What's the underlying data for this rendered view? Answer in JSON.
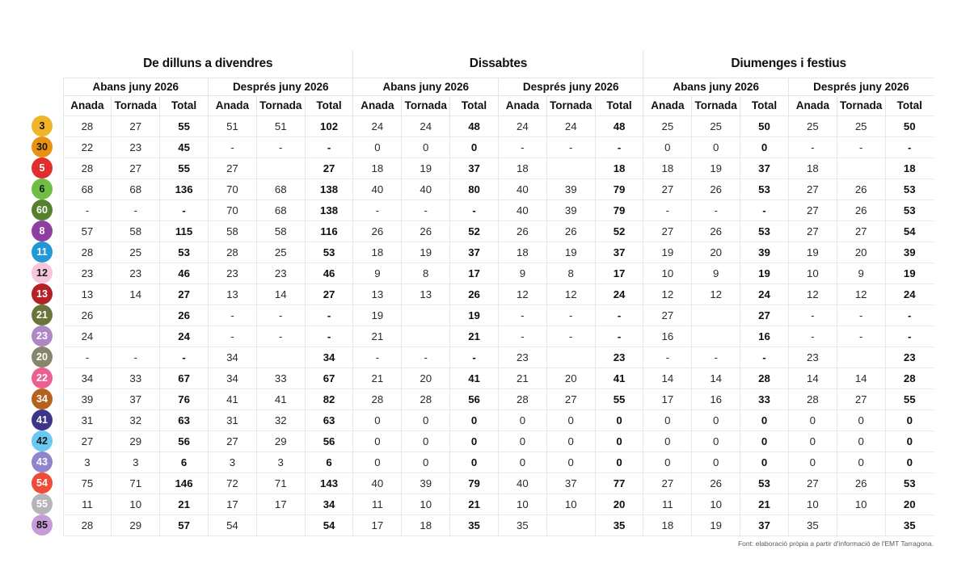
{
  "chart_data": {
    "type": "table",
    "groups": [
      "De dilluns a divendres",
      "Dissabtes",
      "Diumenges i festius"
    ],
    "periods": [
      "Abans juny 2026",
      "Després juny 2026"
    ],
    "columns": [
      "Anada",
      "Tornada",
      "Total"
    ],
    "rows": [
      {
        "line": "3",
        "badge_color": "#F0B429",
        "badge_text": "#161616",
        "weekday_before": [
          "28",
          "27",
          "55"
        ],
        "weekday_after": [
          "51",
          "51",
          "102"
        ],
        "saturday_before": [
          "24",
          "24",
          "48"
        ],
        "saturday_after": [
          "24",
          "24",
          "48"
        ],
        "sunday_before": [
          "25",
          "25",
          "50"
        ],
        "sunday_after": [
          "25",
          "25",
          "50"
        ]
      },
      {
        "line": "30",
        "badge_color": "#E9920F",
        "badge_text": "#161616",
        "weekday_before": [
          "22",
          "23",
          "45"
        ],
        "weekday_after": [
          "-",
          "-",
          "-"
        ],
        "saturday_before": [
          "0",
          "0",
          "0"
        ],
        "saturday_after": [
          "-",
          "-",
          "-"
        ],
        "sunday_before": [
          "0",
          "0",
          "0"
        ],
        "sunday_after": [
          "-",
          "-",
          "-"
        ]
      },
      {
        "line": "5",
        "badge_color": "#E12D2D",
        "badge_text": "#ffffff",
        "weekday_before": [
          "28",
          "27",
          "55"
        ],
        "weekday_after": [
          "27",
          "",
          "27"
        ],
        "saturday_before": [
          "18",
          "19",
          "37"
        ],
        "saturday_after": [
          "18",
          "",
          "18"
        ],
        "sunday_before": [
          "18",
          "19",
          "37"
        ],
        "sunday_after": [
          "18",
          "",
          "18"
        ]
      },
      {
        "line": "6",
        "badge_color": "#6EBE45",
        "badge_text": "#161616",
        "weekday_before": [
          "68",
          "68",
          "136"
        ],
        "weekday_after": [
          "70",
          "68",
          "138"
        ],
        "saturday_before": [
          "40",
          "40",
          "80"
        ],
        "saturday_after": [
          "40",
          "39",
          "79"
        ],
        "sunday_before": [
          "27",
          "26",
          "53"
        ],
        "sunday_after": [
          "27",
          "26",
          "53"
        ]
      },
      {
        "line": "60",
        "badge_color": "#55812E",
        "badge_text": "#ffffff",
        "weekday_before": [
          "-",
          "-",
          "-"
        ],
        "weekday_after": [
          "70",
          "68",
          "138"
        ],
        "saturday_before": [
          "-",
          "-",
          "-"
        ],
        "saturday_after": [
          "40",
          "39",
          "79"
        ],
        "sunday_before": [
          "-",
          "-",
          "-"
        ],
        "sunday_after": [
          "27",
          "26",
          "53"
        ]
      },
      {
        "line": "8",
        "badge_color": "#8F3FA0",
        "badge_text": "#ffffff",
        "weekday_before": [
          "57",
          "58",
          "115"
        ],
        "weekday_after": [
          "58",
          "58",
          "116"
        ],
        "saturday_before": [
          "26",
          "26",
          "52"
        ],
        "saturday_after": [
          "26",
          "26",
          "52"
        ],
        "sunday_before": [
          "27",
          "26",
          "53"
        ],
        "sunday_after": [
          "27",
          "27",
          "54"
        ]
      },
      {
        "line": "11",
        "badge_color": "#2099D6",
        "badge_text": "#ffffff",
        "weekday_before": [
          "28",
          "25",
          "53"
        ],
        "weekday_after": [
          "28",
          "25",
          "53"
        ],
        "saturday_before": [
          "18",
          "19",
          "37"
        ],
        "saturday_after": [
          "18",
          "19",
          "37"
        ],
        "sunday_before": [
          "19",
          "20",
          "39"
        ],
        "sunday_after": [
          "19",
          "20",
          "39"
        ]
      },
      {
        "line": "12",
        "badge_color": "#F6C6DD",
        "badge_text": "#161616",
        "weekday_before": [
          "23",
          "23",
          "46"
        ],
        "weekday_after": [
          "23",
          "23",
          "46"
        ],
        "saturday_before": [
          "9",
          "8",
          "17"
        ],
        "saturday_after": [
          "9",
          "8",
          "17"
        ],
        "sunday_before": [
          "10",
          "9",
          "19"
        ],
        "sunday_after": [
          "10",
          "9",
          "19"
        ]
      },
      {
        "line": "13",
        "badge_color": "#B32025",
        "badge_text": "#ffffff",
        "weekday_before": [
          "13",
          "14",
          "27"
        ],
        "weekday_after": [
          "13",
          "14",
          "27"
        ],
        "saturday_before": [
          "13",
          "13",
          "26"
        ],
        "saturday_after": [
          "12",
          "12",
          "24"
        ],
        "sunday_before": [
          "12",
          "12",
          "24"
        ],
        "sunday_after": [
          "12",
          "12",
          "24"
        ]
      },
      {
        "line": "21",
        "badge_color": "#6A753C",
        "badge_text": "#ffffff",
        "weekday_before": [
          "26",
          "",
          "26"
        ],
        "weekday_after": [
          "-",
          "-",
          "-"
        ],
        "saturday_before": [
          "19",
          "",
          "19"
        ],
        "saturday_after": [
          "-",
          "-",
          "-"
        ],
        "sunday_before": [
          "27",
          "",
          "27"
        ],
        "sunday_after": [
          "-",
          "-",
          "-"
        ]
      },
      {
        "line": "23",
        "badge_color": "#AF86C6",
        "badge_text": "#ffffff",
        "weekday_before": [
          "24",
          "",
          "24"
        ],
        "weekday_after": [
          "-",
          "-",
          "-"
        ],
        "saturday_before": [
          "21",
          "",
          "21"
        ],
        "saturday_after": [
          "-",
          "-",
          "-"
        ],
        "sunday_before": [
          "16",
          "",
          "16"
        ],
        "sunday_after": [
          "-",
          "-",
          "-"
        ]
      },
      {
        "line": "20",
        "badge_color": "#86866C",
        "badge_text": "#ffffff",
        "weekday_before": [
          "-",
          "-",
          "-"
        ],
        "weekday_after": [
          "34",
          "",
          "34"
        ],
        "saturday_before": [
          "-",
          "-",
          "-"
        ],
        "saturday_after": [
          "23",
          "",
          "23"
        ],
        "sunday_before": [
          "-",
          "-",
          "-"
        ],
        "sunday_after": [
          "23",
          "",
          "23"
        ]
      },
      {
        "line": "22",
        "badge_color": "#EC5F93",
        "badge_text": "#ffffff",
        "weekday_before": [
          "34",
          "33",
          "67"
        ],
        "weekday_after": [
          "34",
          "33",
          "67"
        ],
        "saturday_before": [
          "21",
          "20",
          "41"
        ],
        "saturday_after": [
          "21",
          "20",
          "41"
        ],
        "sunday_before": [
          "14",
          "14",
          "28"
        ],
        "sunday_after": [
          "14",
          "14",
          "28"
        ]
      },
      {
        "line": "34",
        "badge_color": "#B5621F",
        "badge_text": "#ffffff",
        "weekday_before": [
          "39",
          "37",
          "76"
        ],
        "weekday_after": [
          "41",
          "41",
          "82"
        ],
        "saturday_before": [
          "28",
          "28",
          "56"
        ],
        "saturday_after": [
          "28",
          "27",
          "55"
        ],
        "sunday_before": [
          "17",
          "16",
          "33"
        ],
        "sunday_after": [
          "28",
          "27",
          "55"
        ]
      },
      {
        "line": "41",
        "badge_color": "#3D3587",
        "badge_text": "#ffffff",
        "weekday_before": [
          "31",
          "32",
          "63"
        ],
        "weekday_after": [
          "31",
          "32",
          "63"
        ],
        "saturday_before": [
          "0",
          "0",
          "0"
        ],
        "saturday_after": [
          "0",
          "0",
          "0"
        ],
        "sunday_before": [
          "0",
          "0",
          "0"
        ],
        "sunday_after": [
          "0",
          "0",
          "0"
        ]
      },
      {
        "line": "42",
        "badge_color": "#69C9F2",
        "badge_text": "#161616",
        "weekday_before": [
          "27",
          "29",
          "56"
        ],
        "weekday_after": [
          "27",
          "29",
          "56"
        ],
        "saturday_before": [
          "0",
          "0",
          "0"
        ],
        "saturday_after": [
          "0",
          "0",
          "0"
        ],
        "sunday_before": [
          "0",
          "0",
          "0"
        ],
        "sunday_after": [
          "0",
          "0",
          "0"
        ]
      },
      {
        "line": "43",
        "badge_color": "#9184CB",
        "badge_text": "#ffffff",
        "weekday_before": [
          "3",
          "3",
          "6"
        ],
        "weekday_after": [
          "3",
          "3",
          "6"
        ],
        "saturday_before": [
          "0",
          "0",
          "0"
        ],
        "saturday_after": [
          "0",
          "0",
          "0"
        ],
        "sunday_before": [
          "0",
          "0",
          "0"
        ],
        "sunday_after": [
          "0",
          "0",
          "0"
        ]
      },
      {
        "line": "54",
        "badge_color": "#EF4B38",
        "badge_text": "#ffffff",
        "weekday_before": [
          "75",
          "71",
          "146"
        ],
        "weekday_after": [
          "72",
          "71",
          "143"
        ],
        "saturday_before": [
          "40",
          "39",
          "79"
        ],
        "saturday_after": [
          "40",
          "37",
          "77"
        ],
        "sunday_before": [
          "27",
          "26",
          "53"
        ],
        "sunday_after": [
          "27",
          "26",
          "53"
        ]
      },
      {
        "line": "55",
        "badge_color": "#B5B5B7",
        "badge_text": "#ffffff",
        "weekday_before": [
          "11",
          "10",
          "21"
        ],
        "weekday_after": [
          "17",
          "17",
          "34"
        ],
        "saturday_before": [
          "11",
          "10",
          "21"
        ],
        "saturday_after": [
          "10",
          "10",
          "20"
        ],
        "sunday_before": [
          "11",
          "10",
          "21"
        ],
        "sunday_after": [
          "10",
          "10",
          "20"
        ]
      },
      {
        "line": "85",
        "badge_color": "#C59BD8",
        "badge_text": "#161616",
        "weekday_before": [
          "28",
          "29",
          "57"
        ],
        "weekday_after": [
          "54",
          "",
          "54"
        ],
        "saturday_before": [
          "17",
          "18",
          "35"
        ],
        "saturday_after": [
          "35",
          "",
          "35"
        ],
        "sunday_before": [
          "18",
          "19",
          "37"
        ],
        "sunday_after": [
          "35",
          "",
          "35"
        ]
      }
    ]
  },
  "footer": {
    "source": "Font: elaboració pròpia a partir d'informació de l'EMT Tarragona."
  }
}
